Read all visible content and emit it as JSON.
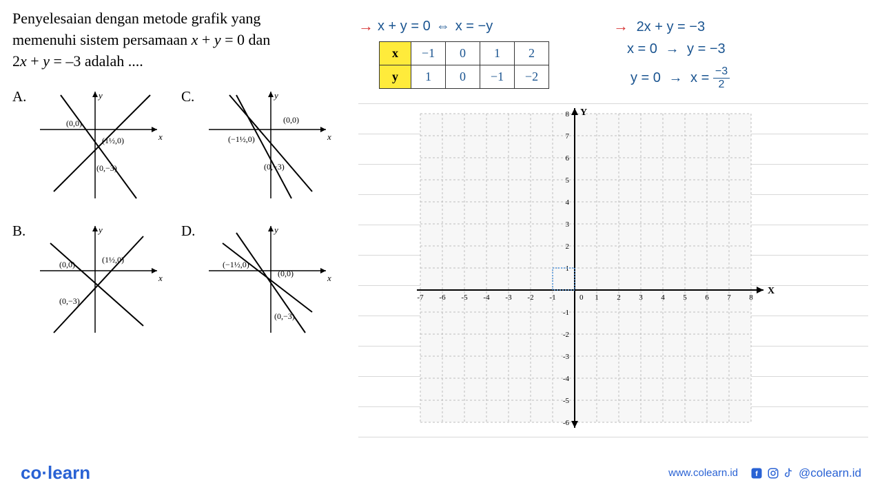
{
  "question": {
    "text_line1": "Penyelesaian dengan metode grafik yang",
    "text_line2": "memenuhi sistem persamaan x + y = 0 dan",
    "text_line3": "2x + y = –3 adalah ...."
  },
  "options": {
    "a_label": "A.",
    "b_label": "B.",
    "c_label": "C.",
    "d_label": "D.",
    "a_points": [
      "(0,0)",
      "(1½,0)",
      "(0,−3)"
    ],
    "b_points": [
      "(0,0)",
      "(1½,0)",
      "(0,−3)"
    ],
    "c_points": [
      "(0,0)",
      "(−1½,0)",
      "(0,−3)"
    ],
    "d_points": [
      "(0,0)",
      "(−1½,0)",
      "(0,−3)"
    ]
  },
  "handwriting": {
    "eq1_left": "x + y = 0",
    "eq1_right": "x = −y",
    "eq2": "2x + y = −3",
    "eq3_left": "x = 0",
    "eq3_right": "y = −3",
    "eq4_left": "y = 0",
    "eq4_right_prefix": "x =",
    "eq4_frac_num": "−3",
    "eq4_frac_den": "2"
  },
  "table": {
    "x_label": "x",
    "y_label": "y",
    "x_values": [
      "−1",
      "0",
      "1",
      "2"
    ],
    "y_values": [
      "1",
      "0",
      "−1",
      "−2"
    ]
  },
  "graph": {
    "x_min": -7,
    "x_max": 8,
    "y_min": -6,
    "y_max": 8,
    "x_label": "X",
    "y_label": "Y",
    "grid_color": "#bcbcbc",
    "axis_color": "#000000",
    "background": "#f7f7f7",
    "cell_size": 32,
    "tick_fontsize": 11
  },
  "footer": {
    "logo_text_1": "co",
    "logo_text_2": "learn",
    "url": "www.colearn.id",
    "handle": "@colearn.id"
  },
  "colors": {
    "blue_hand": "#1a5490",
    "red_arrow": "#d63333",
    "yellow_cell": "#ffeb3b",
    "brand_blue": "#2962d4",
    "black": "#000000"
  }
}
